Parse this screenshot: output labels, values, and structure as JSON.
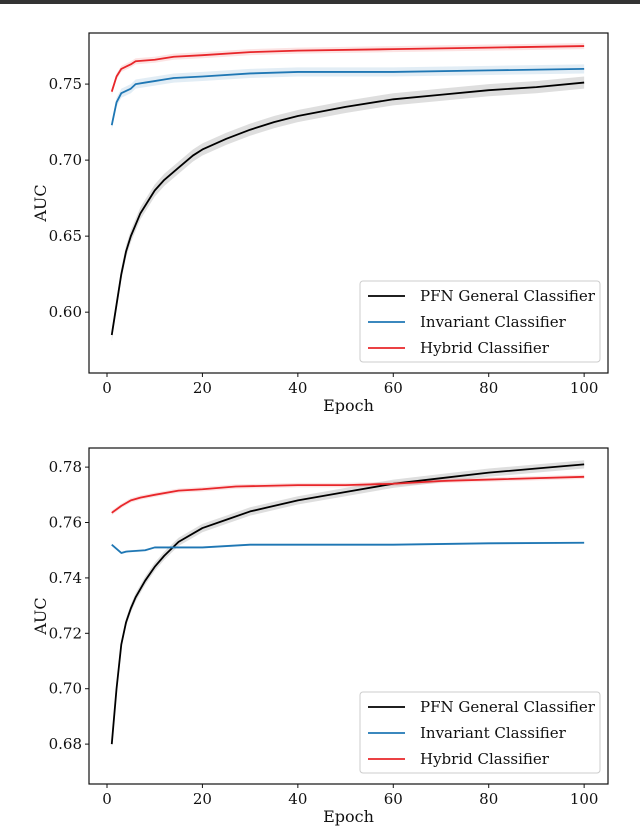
{
  "chart_data": [
    {
      "type": "line",
      "title": "",
      "xlabel": "Epoch",
      "ylabel": "AUC",
      "xlim": [
        -3.77,
        105.0
      ],
      "ylim": [
        0.56,
        0.7836
      ],
      "xticks": [
        0,
        20,
        40,
        60,
        80,
        100
      ],
      "yticks": [
        0.6,
        0.65,
        0.7,
        0.75
      ],
      "ytick_labels": [
        "0.60",
        "0.65",
        "0.70",
        "0.75"
      ],
      "legend_position": "lower-right",
      "grid": false,
      "series": [
        {
          "name": "PFN General Classifier",
          "color": "#000000",
          "band": 0.004,
          "x": [
            1,
            2,
            3,
            4,
            5,
            7,
            10,
            12,
            15,
            18,
            20,
            25,
            30,
            35,
            40,
            50,
            60,
            70,
            80,
            90,
            100
          ],
          "y": [
            0.585,
            0.605,
            0.625,
            0.64,
            0.65,
            0.665,
            0.68,
            0.687,
            0.695,
            0.703,
            0.707,
            0.714,
            0.72,
            0.725,
            0.729,
            0.735,
            0.74,
            0.743,
            0.746,
            0.748,
            0.751
          ]
        },
        {
          "name": "Invariant Classifier",
          "color": "#1f77b4",
          "band": 0.003,
          "x": [
            1,
            2,
            3,
            5,
            6,
            8,
            10,
            12,
            14,
            20,
            30,
            40,
            60,
            80,
            100
          ],
          "y": [
            0.723,
            0.738,
            0.744,
            0.747,
            0.75,
            0.751,
            0.752,
            0.753,
            0.754,
            0.755,
            0.757,
            0.758,
            0.758,
            0.759,
            0.76
          ]
        },
        {
          "name": "Hybrid Classifier",
          "color": "#e8262a",
          "band": 0.002,
          "x": [
            1,
            2,
            3,
            5,
            6,
            10,
            14,
            20,
            30,
            40,
            60,
            80,
            100
          ],
          "y": [
            0.745,
            0.755,
            0.76,
            0.763,
            0.765,
            0.766,
            0.768,
            0.769,
            0.771,
            0.772,
            0.773,
            0.774,
            0.775
          ]
        }
      ]
    },
    {
      "type": "line",
      "title": "",
      "xlabel": "Epoch",
      "ylabel": "AUC",
      "xlim": [
        -3.77,
        105.0
      ],
      "ylim": [
        0.6656,
        0.7869
      ],
      "xticks": [
        0,
        20,
        40,
        60,
        80,
        100
      ],
      "yticks": [
        0.68,
        0.7,
        0.72,
        0.74,
        0.76,
        0.78
      ],
      "ytick_labels": [
        "0.68",
        "0.70",
        "0.72",
        "0.74",
        "0.76",
        "0.78"
      ],
      "legend_position": "lower-right",
      "grid": false,
      "series": [
        {
          "name": "PFN General Classifier",
          "color": "#000000",
          "band": 0.0015,
          "x": [
            1,
            2,
            3,
            4,
            5,
            6,
            8,
            10,
            12,
            15,
            20,
            25,
            30,
            40,
            50,
            60,
            70,
            80,
            90,
            100
          ],
          "y": [
            0.68,
            0.7,
            0.716,
            0.724,
            0.729,
            0.733,
            0.739,
            0.744,
            0.748,
            0.753,
            0.758,
            0.761,
            0.764,
            0.768,
            0.771,
            0.774,
            0.776,
            0.778,
            0.7795,
            0.781
          ]
        },
        {
          "name": "Invariant Classifier",
          "color": "#1f77b4",
          "band": 0.0004,
          "x": [
            1,
            3,
            4,
            8,
            10,
            20,
            30,
            40,
            50,
            60,
            80,
            100
          ],
          "y": [
            0.752,
            0.749,
            0.7495,
            0.75,
            0.751,
            0.751,
            0.752,
            0.752,
            0.752,
            0.752,
            0.7525,
            0.7527
          ]
        },
        {
          "name": "Hybrid Classifier",
          "color": "#e8262a",
          "band": 0.0008,
          "x": [
            1,
            3,
            5,
            7,
            10,
            15,
            20,
            27,
            40,
            50,
            60,
            70,
            80,
            100
          ],
          "y": [
            0.7635,
            0.766,
            0.768,
            0.769,
            0.77,
            0.7715,
            0.772,
            0.773,
            0.7735,
            0.7735,
            0.774,
            0.775,
            0.7755,
            0.7765
          ]
        }
      ]
    }
  ]
}
